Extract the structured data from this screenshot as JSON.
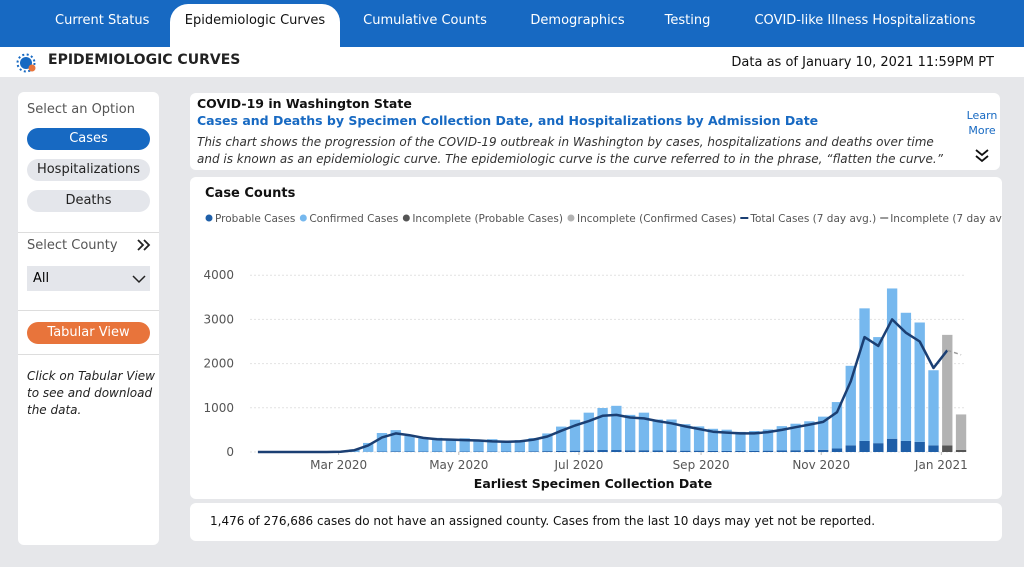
{
  "nav": {
    "tabs": [
      "Current Status",
      "Epidemiologic Curves",
      "Cumulative Counts",
      "Demographics",
      "Testing",
      "COVID-like Illness Hospitalizations"
    ],
    "active": 1
  },
  "header": {
    "title": "EPIDEMIOLOGIC CURVES",
    "data_as_of": "Data as of January 10, 2021 11:59PM PT"
  },
  "sidebar": {
    "option_label": "Select an Option",
    "options": [
      "Cases",
      "Hospitalizations",
      "Deaths"
    ],
    "selected": 0,
    "county_label": "Select County",
    "county_value": "All",
    "tabular_button": "Tabular View",
    "tabular_note": "Click on Tabular View to see and download the data."
  },
  "info": {
    "heading": "COVID-19 in Washington State",
    "subheading": "Cases and Deaths by Specimen Collection Date, and Hospitalizations by Admission Date",
    "description": "This chart shows the progression of the COVID-19 outbreak in Washington by cases, hospitalizations and deaths over time and is known as an epidemiologic curve. The epidemiologic curve is the curve referred to in the phrase, “flatten the curve.”",
    "learn_more": "Learn More"
  },
  "chart_data": {
    "type": "bar",
    "title": "Case Counts",
    "x_label": "Earliest Specimen Collection Date",
    "x": [
      "2020-01-20",
      "2020-01-27",
      "2020-02-03",
      "2020-02-10",
      "2020-02-17",
      "2020-02-24",
      "2020-03-02",
      "2020-03-09",
      "2020-03-16",
      "2020-03-23",
      "2020-03-30",
      "2020-04-06",
      "2020-04-13",
      "2020-04-20",
      "2020-04-27",
      "2020-05-04",
      "2020-05-11",
      "2020-05-18",
      "2020-05-25",
      "2020-06-01",
      "2020-06-08",
      "2020-06-15",
      "2020-06-22",
      "2020-06-29",
      "2020-07-06",
      "2020-07-13",
      "2020-07-20",
      "2020-07-27",
      "2020-08-03",
      "2020-08-10",
      "2020-08-17",
      "2020-08-24",
      "2020-08-31",
      "2020-09-07",
      "2020-09-14",
      "2020-09-21",
      "2020-09-28",
      "2020-10-05",
      "2020-10-12",
      "2020-10-19",
      "2020-10-26",
      "2020-11-02",
      "2020-11-09",
      "2020-11-16",
      "2020-11-23",
      "2020-11-30",
      "2020-12-07",
      "2020-12-14",
      "2020-12-21",
      "2020-12-28",
      "2021-01-04",
      "2021-01-11"
    ],
    "xlim": [
      "2020-01-16",
      "2021-01-13"
    ],
    "xticks": [
      {
        "value": "2020-03-01",
        "label": "Mar 2020"
      },
      {
        "value": "2020-05-01",
        "label": "May 2020"
      },
      {
        "value": "2020-07-01",
        "label": "Jul 2020"
      },
      {
        "value": "2020-09-01",
        "label": "Sep 2020"
      },
      {
        "value": "2020-11-01",
        "label": "Nov 2020"
      },
      {
        "value": "2021-01-01",
        "label": "Jan 2021"
      }
    ],
    "ylim": [
      0,
      5000
    ],
    "yticks": [
      0,
      1000,
      2000,
      3000,
      4000
    ],
    "grid": true,
    "series": [
      {
        "name": "Probable Cases",
        "type": "bar",
        "color": "#1f5fa8",
        "values": [
          0,
          0,
          0,
          0,
          0,
          0,
          0,
          0,
          5,
          10,
          15,
          12,
          10,
          10,
          10,
          10,
          10,
          10,
          10,
          10,
          15,
          20,
          25,
          30,
          40,
          45,
          45,
          40,
          40,
          35,
          35,
          30,
          30,
          25,
          25,
          25,
          25,
          30,
          35,
          40,
          45,
          50,
          80,
          150,
          250,
          200,
          300,
          250,
          230,
          150,
          null,
          null
        ]
      },
      {
        "name": "Confirmed Cases",
        "type": "bar",
        "color": "#76b8ee",
        "values": [
          0,
          0,
          0,
          0,
          0,
          0,
          10,
          60,
          200,
          420,
          480,
          350,
          300,
          310,
          260,
          300,
          250,
          280,
          220,
          260,
          300,
          400,
          550,
          700,
          850,
          950,
          1000,
          800,
          850,
          700,
          700,
          600,
          550,
          500,
          480,
          430,
          450,
          480,
          550,
          600,
          650,
          750,
          1050,
          1800,
          3000,
          2400,
          3400,
          2900,
          2700,
          1700,
          null,
          null
        ]
      },
      {
        "name": "Incomplete (Probable Cases)",
        "type": "bar",
        "color": "#555555",
        "values": [
          null,
          null,
          null,
          null,
          null,
          null,
          null,
          null,
          null,
          null,
          null,
          null,
          null,
          null,
          null,
          null,
          null,
          null,
          null,
          null,
          null,
          null,
          null,
          null,
          null,
          null,
          null,
          null,
          null,
          null,
          null,
          null,
          null,
          null,
          null,
          null,
          null,
          null,
          null,
          null,
          null,
          null,
          null,
          null,
          null,
          null,
          null,
          null,
          null,
          null,
          150,
          50
        ]
      },
      {
        "name": "Incomplete (Confirmed Cases)",
        "type": "bar",
        "color": "#b3b3b3",
        "values": [
          null,
          null,
          null,
          null,
          null,
          null,
          null,
          null,
          null,
          null,
          null,
          null,
          null,
          null,
          null,
          null,
          null,
          null,
          null,
          null,
          null,
          null,
          null,
          null,
          null,
          null,
          null,
          null,
          null,
          null,
          null,
          null,
          null,
          null,
          null,
          null,
          null,
          null,
          null,
          null,
          null,
          null,
          null,
          null,
          null,
          null,
          null,
          null,
          null,
          null,
          2500,
          800
        ]
      },
      {
        "name": "Total Cases (7 day avg.)",
        "type": "line",
        "color": "#1b3f73",
        "values": [
          0,
          0,
          0,
          0,
          0,
          0,
          5,
          40,
          150,
          330,
          420,
          380,
          320,
          290,
          280,
          270,
          260,
          240,
          230,
          240,
          280,
          350,
          480,
          600,
          700,
          820,
          840,
          780,
          760,
          700,
          650,
          580,
          520,
          460,
          440,
          420,
          420,
          450,
          500,
          560,
          620,
          680,
          900,
          1600,
          2600,
          2400,
          3000,
          2700,
          2500,
          1900,
          2300,
          null
        ]
      },
      {
        "name": "Incomplete (7 day avg.)",
        "type": "line",
        "dashed": true,
        "color": "#9a9a9a",
        "values": [
          null,
          null,
          null,
          null,
          null,
          null,
          null,
          null,
          null,
          null,
          null,
          null,
          null,
          null,
          null,
          null,
          null,
          null,
          null,
          null,
          null,
          null,
          null,
          null,
          null,
          null,
          null,
          null,
          null,
          null,
          null,
          null,
          null,
          null,
          null,
          null,
          null,
          null,
          null,
          null,
          null,
          null,
          null,
          null,
          null,
          null,
          null,
          null,
          null,
          null,
          2300,
          2200
        ]
      }
    ]
  },
  "footnote": "1,476 of 276,686 cases do not have an assigned county. Cases from the last 10 days may yet not be reported."
}
